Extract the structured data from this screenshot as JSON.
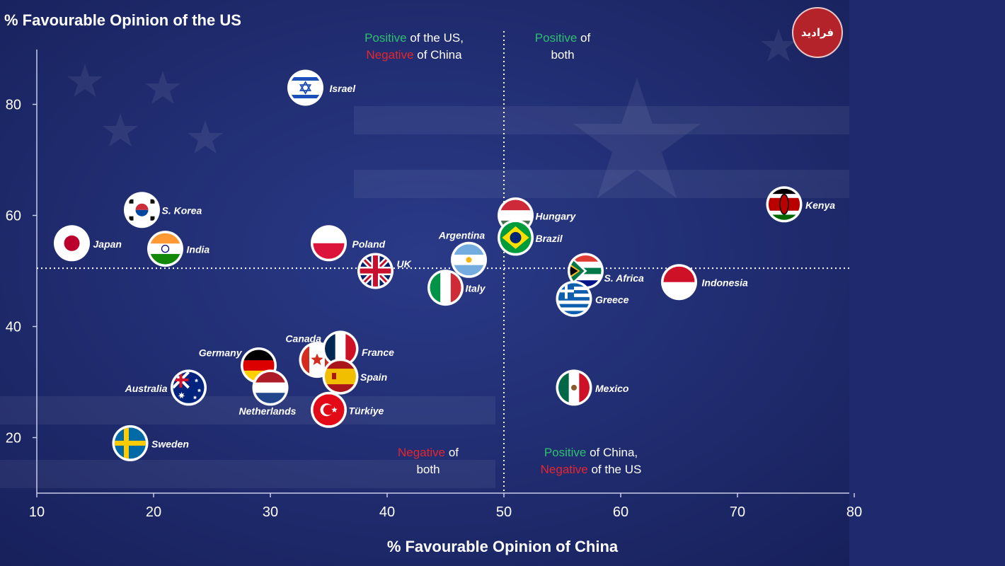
{
  "logo_text": "فرادید",
  "quadrants": {
    "top_left": {
      "line1_colored": "Positive",
      "line1_rest": " of the US,",
      "line2_colored": "Negative",
      "line2_rest": " of China"
    },
    "top_right": {
      "line1_colored": "Positive",
      "line1_rest": " of",
      "line2_rest": "both"
    },
    "bottom_left": {
      "line1_colored": "Negative",
      "line1_rest": " of",
      "line2_rest": "both"
    },
    "bottom_right": {
      "line1_colored": "Positive",
      "line1_rest": " of China,",
      "line2_colored": "Negative",
      "line2_rest": " of the US"
    }
  },
  "colors": {
    "background": "#1f2a6e",
    "positive": "#2fbf71",
    "negative": "#e5262f",
    "text": "#ffffff"
  },
  "chart_data": {
    "type": "scatter",
    "title": "",
    "xlabel": "% Favourable Opinion of China",
    "ylabel": "% Favourable Opinion of the US",
    "xlim": [
      10,
      80
    ],
    "ylim": [
      10,
      90
    ],
    "x_ticks": [
      10,
      20,
      30,
      40,
      50,
      60,
      70,
      80
    ],
    "y_ticks": [
      20,
      40,
      60,
      80
    ],
    "reference_lines": {
      "x": 50,
      "y": 50.5
    },
    "grid": false,
    "legend": "none",
    "points": [
      {
        "label": "Israel",
        "x": 33,
        "y": 83,
        "flag": "israel"
      },
      {
        "label": "S. Korea",
        "x": 19,
        "y": 61,
        "flag": "south-korea"
      },
      {
        "label": "Japan",
        "x": 13,
        "y": 55,
        "flag": "japan"
      },
      {
        "label": "India",
        "x": 21,
        "y": 54,
        "flag": "india"
      },
      {
        "label": "Poland",
        "x": 35,
        "y": 55,
        "flag": "poland"
      },
      {
        "label": "UK",
        "x": 39,
        "y": 50,
        "flag": "uk"
      },
      {
        "label": "Argentina",
        "x": 47,
        "y": 52,
        "flag": "argentina"
      },
      {
        "label": "Italy",
        "x": 45,
        "y": 47,
        "flag": "italy"
      },
      {
        "label": "Hungary",
        "x": 51,
        "y": 60,
        "flag": "hungary"
      },
      {
        "label": "Brazil",
        "x": 51,
        "y": 56,
        "flag": "brazil"
      },
      {
        "label": "S. Africa",
        "x": 57,
        "y": 50,
        "flag": "south-africa"
      },
      {
        "label": "Greece",
        "x": 56,
        "y": 45,
        "flag": "greece"
      },
      {
        "label": "Indonesia",
        "x": 65,
        "y": 48,
        "flag": "indonesia"
      },
      {
        "label": "Kenya",
        "x": 74,
        "y": 62,
        "flag": "kenya"
      },
      {
        "label": "Canada",
        "x": 34,
        "y": 34,
        "flag": "canada"
      },
      {
        "label": "France",
        "x": 36,
        "y": 36,
        "flag": "france"
      },
      {
        "label": "Spain",
        "x": 36,
        "y": 31,
        "flag": "spain"
      },
      {
        "label": "Germany",
        "x": 29,
        "y": 33,
        "flag": "germany"
      },
      {
        "label": "Netherlands",
        "x": 30,
        "y": 29,
        "flag": "netherlands"
      },
      {
        "label": "Australia",
        "x": 23,
        "y": 29,
        "flag": "australia"
      },
      {
        "label": "Türkiye",
        "x": 35,
        "y": 25,
        "flag": "turkiye"
      },
      {
        "label": "Sweden",
        "x": 18,
        "y": 19,
        "flag": "sweden"
      },
      {
        "label": "Mexico",
        "x": 56,
        "y": 29,
        "flag": "mexico"
      }
    ]
  }
}
